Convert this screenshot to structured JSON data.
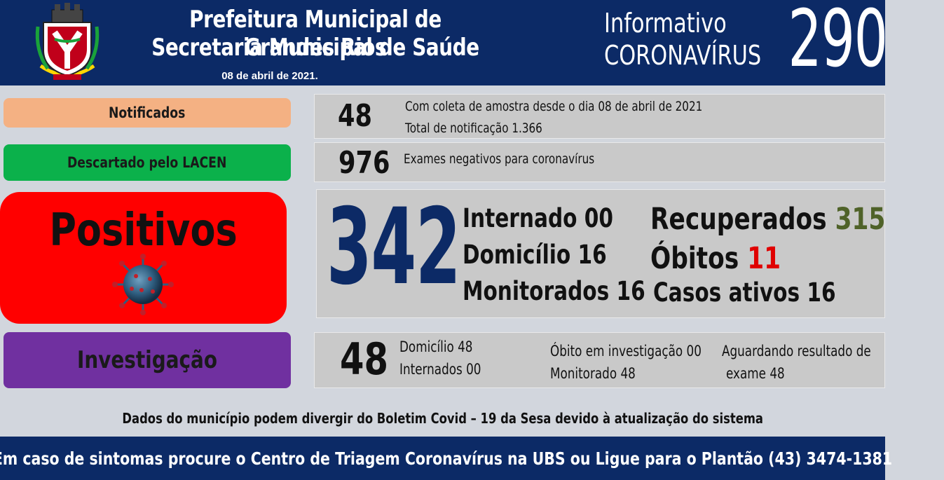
{
  "header": {
    "title": "Prefeitura Municipal de Grandes Rios",
    "subtitle": "Secretaria Municipal de Saúde",
    "date": "08 de abril de 2021.",
    "informativo_line1": "Informativo",
    "informativo_line2": "CORONAVÍRUS",
    "edition_number": "290"
  },
  "notificados": {
    "label": "Notificados",
    "value": "48",
    "line1": "Com coleta de amostra desde o dia 08 de abril de 2021",
    "line2": "Total de notificação 1.366"
  },
  "descartados": {
    "label": "Descartado pelo LACEN",
    "value": "976",
    "text": "Exames negativos para coronavírus"
  },
  "positivos": {
    "label": "Positivos",
    "value": "342",
    "internado": "Internado 00",
    "domicilio": "Domicílio 16",
    "monitorados": "Monitorados 16",
    "recuperados_label": "Recuperados",
    "recuperados_value": "315",
    "obitos_label": "Óbitos",
    "obitos_value": "11",
    "casos_ativos": "Casos ativos 16"
  },
  "investigacao": {
    "label": "Investigação",
    "value": "48",
    "domicilio": "Domicílio 48",
    "internados": "Internados 00",
    "obito": "Óbito em investigação 00",
    "monitorado": "Monitorado 48",
    "aguardando_line1": "Aguardando resultado de",
    "aguardando_line2": "exame 48"
  },
  "footnote": "Dados do município podem divergir do Boletim Covid – 19 da Sesa devido à atualização do sistema",
  "footer": "Em caso de sintomas procure o Centro de Triagem Coronavírus na UBS ou Ligue para o Plantão (43) 3474-1381",
  "icons": [
    "municipal-crest-icon",
    "coronavirus-icon"
  ],
  "colors": {
    "header_bg": "#0c2a66",
    "notificados": "#f4b183",
    "descartados": "#0bb14b",
    "positivos": "#ff0000",
    "investigacao": "#7030a0",
    "recuperados": "#4f6228",
    "obitos": "#e00000"
  }
}
